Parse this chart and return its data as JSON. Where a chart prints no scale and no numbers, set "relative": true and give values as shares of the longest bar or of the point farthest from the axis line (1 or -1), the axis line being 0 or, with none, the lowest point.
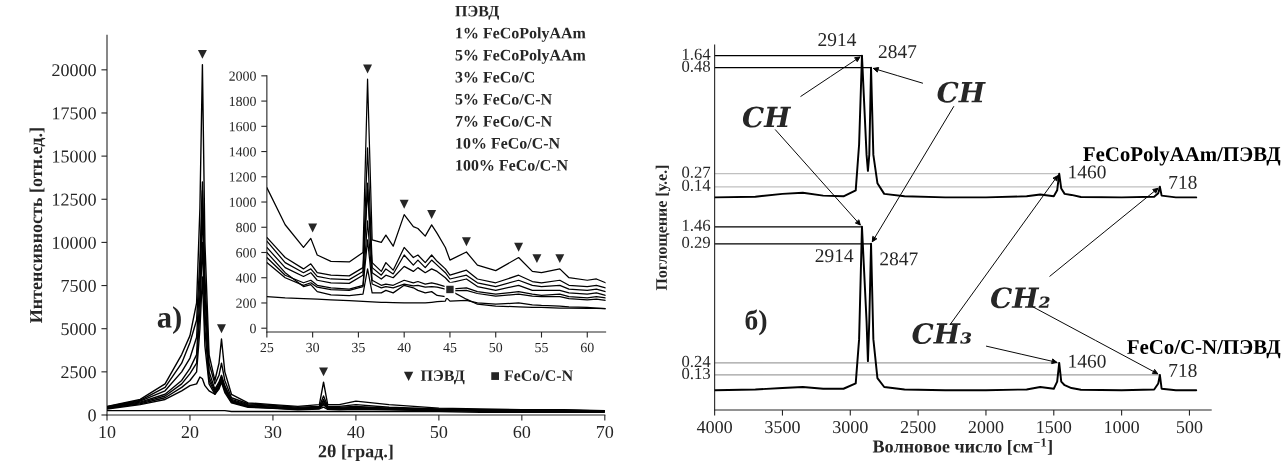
{
  "chart_data": [
    {
      "type": "line",
      "xlabel": "2θ [град.]",
      "ylabel": "Интенсивность [отн.ед.]",
      "x": [
        10,
        14,
        17,
        19,
        20,
        20.8,
        21.2,
        21.5,
        21.8,
        22.3,
        23,
        23.5,
        23.8,
        24.2,
        25,
        27,
        30,
        33,
        35.6,
        36.1,
        36.6,
        38,
        40,
        44,
        50,
        55,
        60,
        65,
        70
      ],
      "series": [
        {
          "color": "#000000",
          "values": [
            500,
            900,
            1800,
            3500,
            4600,
            6500,
            12000,
            20300,
            10000,
            3500,
            2000,
            3000,
            4400,
            2500,
            1200,
            700,
            600,
            500,
            600,
            1900,
            600,
            600,
            800,
            600,
            400,
            350,
            300,
            300,
            250
          ]
        },
        {
          "color": "#000000",
          "values": [
            480,
            850,
            1600,
            3000,
            4200,
            5500,
            9000,
            13500,
            8000,
            3000,
            1800,
            2300,
            3000,
            2000,
            1000,
            650,
            550,
            450,
            500,
            1100,
            500,
            500,
            600,
            450,
            350,
            300,
            280,
            280,
            240
          ]
        },
        {
          "color": "#000000",
          "values": [
            450,
            800,
            1400,
            2500,
            3300,
            4500,
            8000,
            13000,
            7000,
            2500,
            1500,
            1900,
            2300,
            1700,
            900,
            600,
            500,
            400,
            450,
            900,
            450,
            450,
            500,
            400,
            320,
            280,
            260,
            260,
            230
          ]
        },
        {
          "color": "#000000",
          "values": [
            420,
            750,
            1200,
            2000,
            2700,
            3500,
            7000,
            12000,
            6000,
            2200,
            1400,
            1800,
            2200,
            1600,
            850,
            550,
            450,
            380,
            420,
            800,
            420,
            400,
            450,
            380,
            300,
            260,
            250,
            240,
            220
          ]
        },
        {
          "color": "#000000",
          "values": [
            400,
            700,
            1100,
            1800,
            2400,
            3000,
            6000,
            10000,
            5000,
            2000,
            1300,
            1700,
            2100,
            1500,
            800,
            500,
            420,
            350,
            400,
            700,
            400,
            380,
            400,
            350,
            280,
            250,
            240,
            230,
            210
          ]
        },
        {
          "color": "#000000",
          "values": [
            380,
            650,
            1000,
            1600,
            2000,
            2500,
            5000,
            8000,
            4000,
            1800,
            1200,
            1600,
            2000,
            1400,
            750,
            480,
            400,
            330,
            380,
            600,
            380,
            350,
            380,
            330,
            260,
            240,
            230,
            220,
            200
          ]
        },
        {
          "color": "#000000",
          "values": [
            350,
            600,
            900,
            1400,
            1700,
            1800,
            2200,
            2100,
            1700,
            1400,
            1200,
            1500,
            1900,
            1300,
            700,
            450,
            380,
            300,
            350,
            450,
            330,
            300,
            330,
            300,
            240,
            220,
            210,
            200,
            190
          ]
        },
        {
          "color": "#000000",
          "values": [
            250,
            250,
            250,
            250,
            250,
            250,
            250,
            250,
            250,
            250,
            250,
            250,
            250,
            250,
            200,
            200,
            200,
            200,
            200,
            200,
            200,
            200,
            200,
            200,
            200,
            150,
            150,
            150,
            150
          ]
        }
      ],
      "xlim": [
        10,
        70
      ],
      "ylim": [
        0,
        22000
      ],
      "xticks": [
        10,
        20,
        30,
        40,
        50,
        60,
        70
      ],
      "yticks": [
        0,
        2500,
        5000,
        7500,
        10000,
        12500,
        15000,
        17500,
        20000
      ],
      "annotations": [
        "ПЭВД",
        "1% FeCoPolyAAm",
        "5% FeCoPolyAAm",
        "3% FeCo/C",
        "5% FeCo/C-N",
        "7% FeCo/C-N",
        "10% FeCo/C-N",
        "100% FeCo/C-N",
        "а)",
        "▼ ПЭВД",
        "■ FeCo/C-N",
        {
          "text": "▼",
          "x": 21.5,
          "y": 20300
        },
        {
          "text": "▼",
          "x": 23.8,
          "y": 4400
        },
        {
          "text": "▼",
          "x": 36.1,
          "y": 1900
        }
      ]
    },
    {
      "type": "line",
      "x": [
        25,
        27,
        29,
        29.8,
        30.5,
        32,
        34,
        35.5,
        36,
        36.5,
        37.5,
        38,
        38.8,
        40,
        41,
        41.5,
        42.3,
        43,
        43.6,
        44.5,
        45,
        46.8,
        48,
        50,
        52.5,
        54,
        55,
        57,
        58,
        60,
        61,
        62
      ],
      "series": [
        {
          "color": "#000000",
          "values": [
            1114,
            820,
            640,
            712,
            580,
            530,
            525,
            600,
            1973,
            700,
            680,
            738,
            650,
            900,
            805,
            790,
            730,
            819,
            752,
            640,
            540,
            604,
            500,
            456,
            560,
            450,
            440,
            470,
            400,
            380,
            390,
            360
          ]
        },
        {
          "color": "#000000",
          "values": [
            720,
            560,
            470,
            510,
            440,
            420,
            415,
            480,
            1430,
            520,
            450,
            520,
            460,
            640,
            560,
            580,
            520,
            580,
            530,
            470,
            420,
            460,
            390,
            360,
            420,
            370,
            360,
            380,
            340,
            330,
            340,
            320
          ]
        },
        {
          "color": "#000000",
          "values": [
            690,
            520,
            440,
            470,
            410,
            390,
            385,
            450,
            1150,
            480,
            420,
            470,
            430,
            580,
            500,
            540,
            480,
            540,
            500,
            440,
            390,
            420,
            360,
            330,
            380,
            340,
            330,
            340,
            310,
            300,
            310,
            290
          ]
        },
        {
          "color": "#000000",
          "values": [
            640,
            480,
            410,
            440,
            380,
            360,
            355,
            420,
            1100,
            440,
            390,
            420,
            400,
            490,
            450,
            480,
            440,
            470,
            450,
            400,
            360,
            390,
            330,
            300,
            340,
            300,
            300,
            300,
            280,
            270,
            280,
            260
          ]
        },
        {
          "color": "#000000",
          "values": [
            560,
            420,
            360,
            380,
            340,
            320,
            310,
            340,
            850,
            380,
            340,
            350,
            340,
            380,
            360,
            370,
            350,
            360,
            350,
            330,
            310,
            320,
            290,
            270,
            290,
            270,
            260,
            270,
            250,
            240,
            250,
            240
          ]
        },
        {
          "color": "#000000",
          "values": [
            520,
            400,
            340,
            360,
            325,
            305,
            300,
            330,
            700,
            350,
            320,
            330,
            320,
            350,
            335,
            340,
            325,
            330,
            325,
            310,
            295,
            300,
            275,
            255,
            270,
            255,
            250,
            250,
            235,
            225,
            230,
            220
          ]
        },
        {
          "color": "#000000",
          "values": [
            600,
            440,
            330,
            345,
            290,
            265,
            258,
            270,
            470,
            280,
            280,
            300,
            280,
            340,
            320,
            300,
            280,
            290,
            260,
            250,
            215,
            220,
            200,
            190,
            200,
            185,
            180,
            175,
            170,
            165,
            160,
            155
          ]
        },
        {
          "color": "#000000",
          "values": [
            250,
            240,
            235,
            232,
            230,
            225,
            218,
            212,
            210,
            208,
            205,
            204,
            203,
            200,
            200,
            200,
            200,
            205,
            210,
            215,
            300,
            230,
            190,
            175,
            170,
            165,
            165,
            160,
            160,
            158,
            158,
            155
          ]
        }
      ],
      "xlim": [
        25,
        62
      ],
      "ylim": [
        -30,
        2000
      ],
      "xticks": [
        25,
        30,
        35,
        40,
        45,
        50,
        55,
        60
      ],
      "yticks": [
        0,
        200,
        400,
        600,
        800,
        1000,
        1200,
        1400,
        1600,
        1800,
        2000
      ],
      "annotations": [
        {
          "text": "▼",
          "x": 30,
          "y": 712
        },
        {
          "text": "▼",
          "x": 36,
          "y": 1973
        },
        {
          "text": "▼",
          "x": 40,
          "y": 900
        },
        {
          "text": "▼",
          "x": 43,
          "y": 819
        },
        {
          "text": "▼",
          "x": 46.8,
          "y": 604
        },
        {
          "text": "▼",
          "x": 52.5,
          "y": 560
        },
        {
          "text": "▼",
          "x": 54.5,
          "y": 470
        },
        {
          "text": "▼",
          "x": 57,
          "y": 470
        },
        {
          "text": "■",
          "x": 45,
          "y": 300
        }
      ]
    },
    {
      "type": "line",
      "relative": true,
      "xlabel": "Волновое число [см$^{−1}$]",
      "ylabel": "Поглощение [у.е.]",
      "x": [
        4000,
        3700,
        3500,
        3350,
        3200,
        3050,
        2960,
        2935,
        2914,
        2880,
        2870,
        2860,
        2847,
        2830,
        2800,
        2750,
        2600,
        2300,
        2000,
        1700,
        1600,
        1500,
        1475,
        1460,
        1445,
        1420,
        1370,
        1300,
        1000,
        760,
        730,
        718,
        705,
        600,
        450
      ],
      "series": [
        {
          "name": "FeCoPolyAAm/ПЭВД",
          "color": "#000000",
          "values": [
            0.6,
            0.602,
            0.61,
            0.613,
            0.605,
            0.603,
            0.62,
            0.75,
            1.0,
            0.72,
            0.675,
            0.72,
            0.966,
            0.72,
            0.64,
            0.61,
            0.603,
            0.6,
            0.6,
            0.603,
            0.608,
            0.603,
            0.62,
            0.667,
            0.625,
            0.61,
            0.607,
            0.601,
            0.6,
            0.602,
            0.612,
            0.63,
            0.605,
            0.6,
            0.6
          ]
        },
        {
          "name": "FeCo/C-N/ПЭВД",
          "color": "#000000",
          "values": [
            0.056,
            0.058,
            0.062,
            0.065,
            0.06,
            0.06,
            0.075,
            0.2,
            0.517,
            0.25,
            0.138,
            0.25,
            0.469,
            0.2,
            0.09,
            0.065,
            0.058,
            0.056,
            0.056,
            0.058,
            0.065,
            0.06,
            0.08,
            0.133,
            0.08,
            0.07,
            0.062,
            0.057,
            0.056,
            0.058,
            0.075,
            0.099,
            0.06,
            0.056,
            0.056
          ]
        }
      ],
      "xlim": [
        4000,
        340
      ],
      "xticks": [
        4000,
        3500,
        3000,
        2500,
        2000,
        1500,
        1000,
        500
      ],
      "ref_lines": [
        {
          "axis": "y",
          "value": 1.0,
          "color": "#000000"
        },
        {
          "axis": "y",
          "value": 0.966,
          "color": "#000000"
        },
        {
          "axis": "y",
          "value": 0.667,
          "color": "#c0c0c0"
        },
        {
          "axis": "y",
          "value": 0.63,
          "color": "#c0c0c0"
        },
        {
          "axis": "y",
          "value": 0.517,
          "color": "#000000"
        },
        {
          "axis": "y",
          "value": 0.469,
          "color": "#000000"
        },
        {
          "axis": "y",
          "value": 0.133,
          "color": "#a0a0a0"
        },
        {
          "axis": "y",
          "value": 0.099,
          "color": "#a0a0a0"
        }
      ],
      "annotations": [
        {
          "text": "2914",
          "x": 2914,
          "y": 1.0
        },
        {
          "text": "2847",
          "x": 2847,
          "y": 0.966
        },
        {
          "text": "1460",
          "x": 1460,
          "y": 0.667
        },
        {
          "text": "718",
          "x": 718,
          "y": 0.63
        },
        {
          "text": "2914",
          "x": 2914,
          "y": 0.517
        },
        {
          "text": "2847",
          "x": 2847,
          "y": 0.469
        },
        {
          "text": "1460",
          "x": 1460,
          "y": 0.133
        },
        {
          "text": "718",
          "x": 718,
          "y": 0.099
        },
        {
          "text": "CH",
          "x": 2914,
          "y": 1.0
        },
        {
          "text": "CH",
          "x": 2847,
          "y": 0.966
        },
        {
          "text": "CH₂",
          "x": 718,
          "y": 0.63
        },
        {
          "text": "CH₃",
          "x": 1460,
          "y": 0.133
        },
        "б)",
        "1.64",
        "0.48",
        "0.27",
        "0.14",
        "1.46",
        "0.29",
        "0.24",
        "0.13"
      ]
    }
  ]
}
